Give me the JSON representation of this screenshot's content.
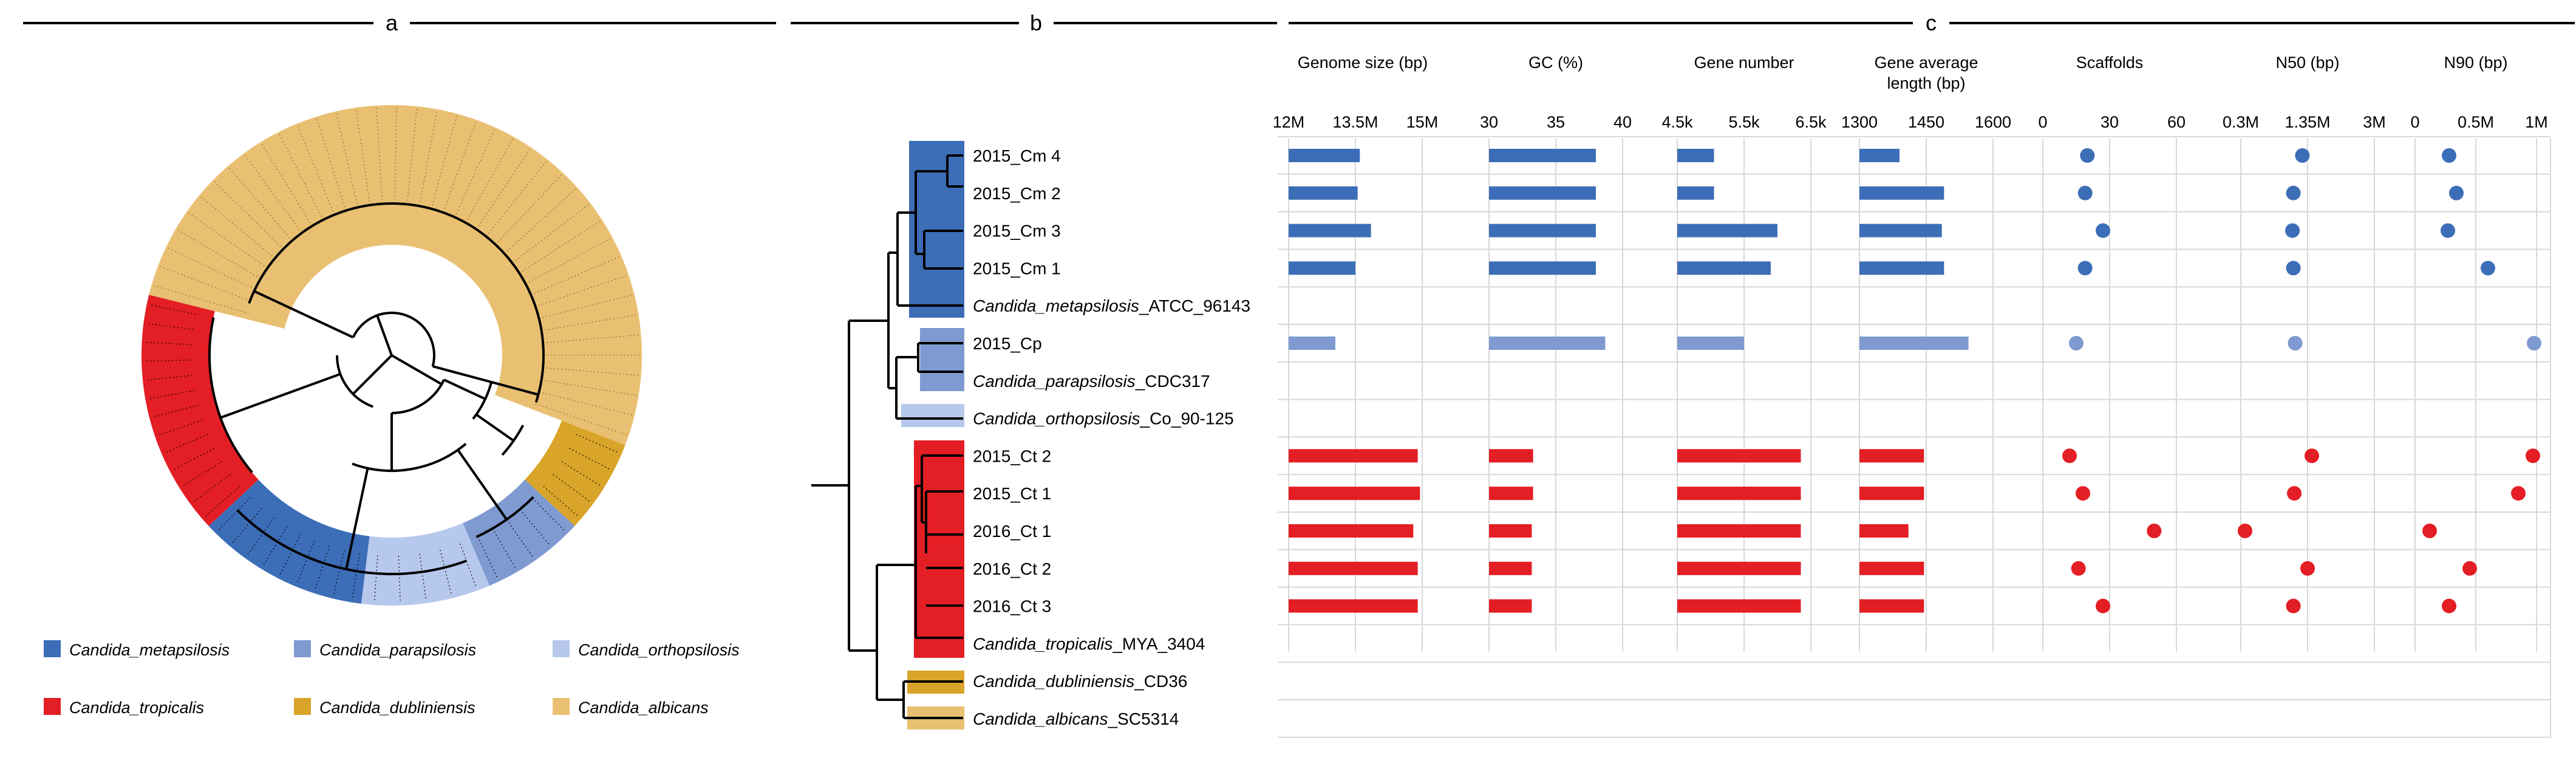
{
  "panels": {
    "a": "a",
    "b": "b",
    "c": "c"
  },
  "colors": {
    "metapsilosis": "#3c6db7",
    "parapsilosis": "#7e9ad0",
    "orthopsilosis": "#b6c8ec",
    "tropicalis": "#e31e24",
    "dubliniensis": "#d9a42a",
    "albicans": "#e9c072"
  },
  "legend": [
    {
      "name": "Candida_metapsilosis",
      "color": "#3c6db7"
    },
    {
      "name": "Candida_parapsilosis",
      "color": "#7e9ad0"
    },
    {
      "name": "Candida_orthopsilosis",
      "color": "#b6c8ec"
    },
    {
      "name": "Candida_tropicalis",
      "color": "#e31e24"
    },
    {
      "name": "Candida_dubliniensis",
      "color": "#d9a42a"
    },
    {
      "name": "Candida_albicans",
      "color": "#e9c072"
    }
  ],
  "circle_sectors": [
    {
      "species": "albicans",
      "start_deg": 194,
      "end_deg": 381,
      "leaves": 40
    },
    {
      "species": "dubliniensis",
      "start_deg": 381,
      "end_deg": 403,
      "leaves": 5
    },
    {
      "species": "parapsilosis",
      "start_deg": 403,
      "end_deg": 427,
      "leaves": 5
    },
    {
      "species": "orthopsilosis",
      "start_deg": 427,
      "end_deg": 457,
      "leaves": 5
    },
    {
      "species": "metapsilosis",
      "start_deg": 457,
      "end_deg": 497,
      "leaves": 9
    },
    {
      "species": "tropicalis",
      "start_deg": 497,
      "end_deg": 554,
      "leaves": 13
    }
  ],
  "taxa": [
    {
      "label": "2015_Cm 4",
      "italic": "",
      "suffix": "",
      "species": "metapsilosis"
    },
    {
      "label": "2015_Cm 2",
      "italic": "",
      "suffix": "",
      "species": "metapsilosis"
    },
    {
      "label": "2015_Cm 3",
      "italic": "",
      "suffix": "",
      "species": "metapsilosis"
    },
    {
      "label": "2015_Cm 1",
      "italic": "",
      "suffix": "",
      "species": "metapsilosis"
    },
    {
      "label": "",
      "italic": "Candida_metapsilosis",
      "suffix": "_ATCC_96143",
      "species": "metapsilosis"
    },
    {
      "label": "2015_Cp",
      "italic": "",
      "suffix": "",
      "species": "parapsilosis"
    },
    {
      "label": "",
      "italic": "Candida_parapsilosis",
      "suffix": "_CDC317",
      "species": "parapsilosis"
    },
    {
      "label": "",
      "italic": "Candida_orthopsilosis",
      "suffix": "_Co_90-125",
      "species": "orthopsilosis"
    },
    {
      "label": "2015_Ct 2",
      "italic": "",
      "suffix": "",
      "species": "tropicalis"
    },
    {
      "label": "2015_Ct 1",
      "italic": "",
      "suffix": "",
      "species": "tropicalis"
    },
    {
      "label": "2016_Ct 1",
      "italic": "",
      "suffix": "",
      "species": "tropicalis"
    },
    {
      "label": "2016_Ct 2",
      "italic": "",
      "suffix": "",
      "species": "tropicalis"
    },
    {
      "label": "2016_Ct 3",
      "italic": "",
      "suffix": "",
      "species": "tropicalis"
    },
    {
      "label": "",
      "italic": "Candida_tropicalis",
      "suffix": "_MYA_3404",
      "species": "tropicalis"
    },
    {
      "label": "",
      "italic": "Candida_dubliniensis",
      "suffix": "_CD36",
      "species": "dubliniensis"
    },
    {
      "label": "",
      "italic": "Candida_albicans",
      "suffix": "_SC5314",
      "species": "albicans"
    }
  ],
  "chart_data": {
    "type": "table",
    "metrics": [
      {
        "title": [
          "Genome size (bp)"
        ],
        "ticks": [
          "12M",
          "13.5M",
          "15M"
        ],
        "range": [
          12000000,
          15000000
        ],
        "mark": "bar"
      },
      {
        "title": [
          "GC (%)"
        ],
        "ticks": [
          "30",
          "35",
          "40"
        ],
        "range": [
          30,
          40
        ],
        "mark": "bar"
      },
      {
        "title": [
          "Gene number"
        ],
        "ticks": [
          "4.5k",
          "5.5k",
          "6.5k"
        ],
        "range": [
          4500,
          6500
        ],
        "mark": "bar"
      },
      {
        "title": [
          "Gene average",
          "length (bp)"
        ],
        "ticks": [
          "1300",
          "1450",
          "1600"
        ],
        "range": [
          1300,
          1600
        ],
        "mark": "bar"
      },
      {
        "title": [
          "Scaffolds"
        ],
        "ticks": [
          "0",
          "30",
          "60"
        ],
        "range": [
          0,
          60
        ],
        "mark": "dot"
      },
      {
        "title": [
          "N50 (bp)"
        ],
        "ticks": [
          "0.3M",
          "1.35M",
          "3M"
        ],
        "range": [
          0.3,
          3
        ],
        "mark": "dot"
      },
      {
        "title": [
          "N90 (bp)"
        ],
        "ticks": [
          "0",
          "0.5M",
          "1M"
        ],
        "range": [
          0,
          1
        ],
        "mark": "dot"
      }
    ],
    "rows": [
      {
        "taxon": "2015_Cm 4",
        "values": [
          13.6,
          38.0,
          5.05,
          1390,
          20,
          1.2,
          0.28
        ]
      },
      {
        "taxon": "2015_Cm 2",
        "values": [
          13.55,
          38.0,
          5.05,
          1490,
          19,
          0.98,
          0.34
        ]
      },
      {
        "taxon": "2015_Cm 3",
        "values": [
          13.85,
          38.0,
          6.0,
          1485,
          27,
          0.96,
          0.27
        ]
      },
      {
        "taxon": "2015_Cm 1",
        "values": [
          13.5,
          38.0,
          5.9,
          1490,
          19,
          0.98,
          0.6
        ]
      },
      {
        "taxon": "Candida_metapsilosis_ATCC_96143",
        "values": null
      },
      {
        "taxon": "2015_Cp",
        "values": [
          13.05,
          38.7,
          5.5,
          1545,
          15,
          1.02,
          0.98
        ]
      },
      {
        "taxon": "Candida_parapsilosis_CDC317",
        "values": null
      },
      {
        "taxon": "Candida_orthopsilosis_Co_90-125",
        "values": null
      },
      {
        "taxon": "2015_Ct 2",
        "values": [
          14.9,
          33.3,
          6.35,
          1445,
          12,
          1.42,
          0.97
        ]
      },
      {
        "taxon": "2015_Ct 1",
        "values": [
          14.95,
          33.3,
          6.35,
          1445,
          18,
          1.0,
          0.85
        ]
      },
      {
        "taxon": "2016_Ct 1",
        "values": [
          14.8,
          33.2,
          6.35,
          1410,
          50,
          0.33,
          0.12
        ]
      },
      {
        "taxon": "2016_Ct 2",
        "values": [
          14.9,
          33.2,
          6.35,
          1445,
          16,
          1.35,
          0.45
        ]
      },
      {
        "taxon": "2016_Ct 3",
        "values": [
          14.9,
          33.2,
          6.35,
          1445,
          27,
          0.98,
          0.28
        ]
      },
      {
        "taxon": "Candida_tropicalis_MYA_3404",
        "values": null
      },
      {
        "taxon": "Candida_dubliniensis_CD36",
        "values": null
      },
      {
        "taxon": "Candida_albicans_SC5314",
        "values": null
      }
    ]
  }
}
